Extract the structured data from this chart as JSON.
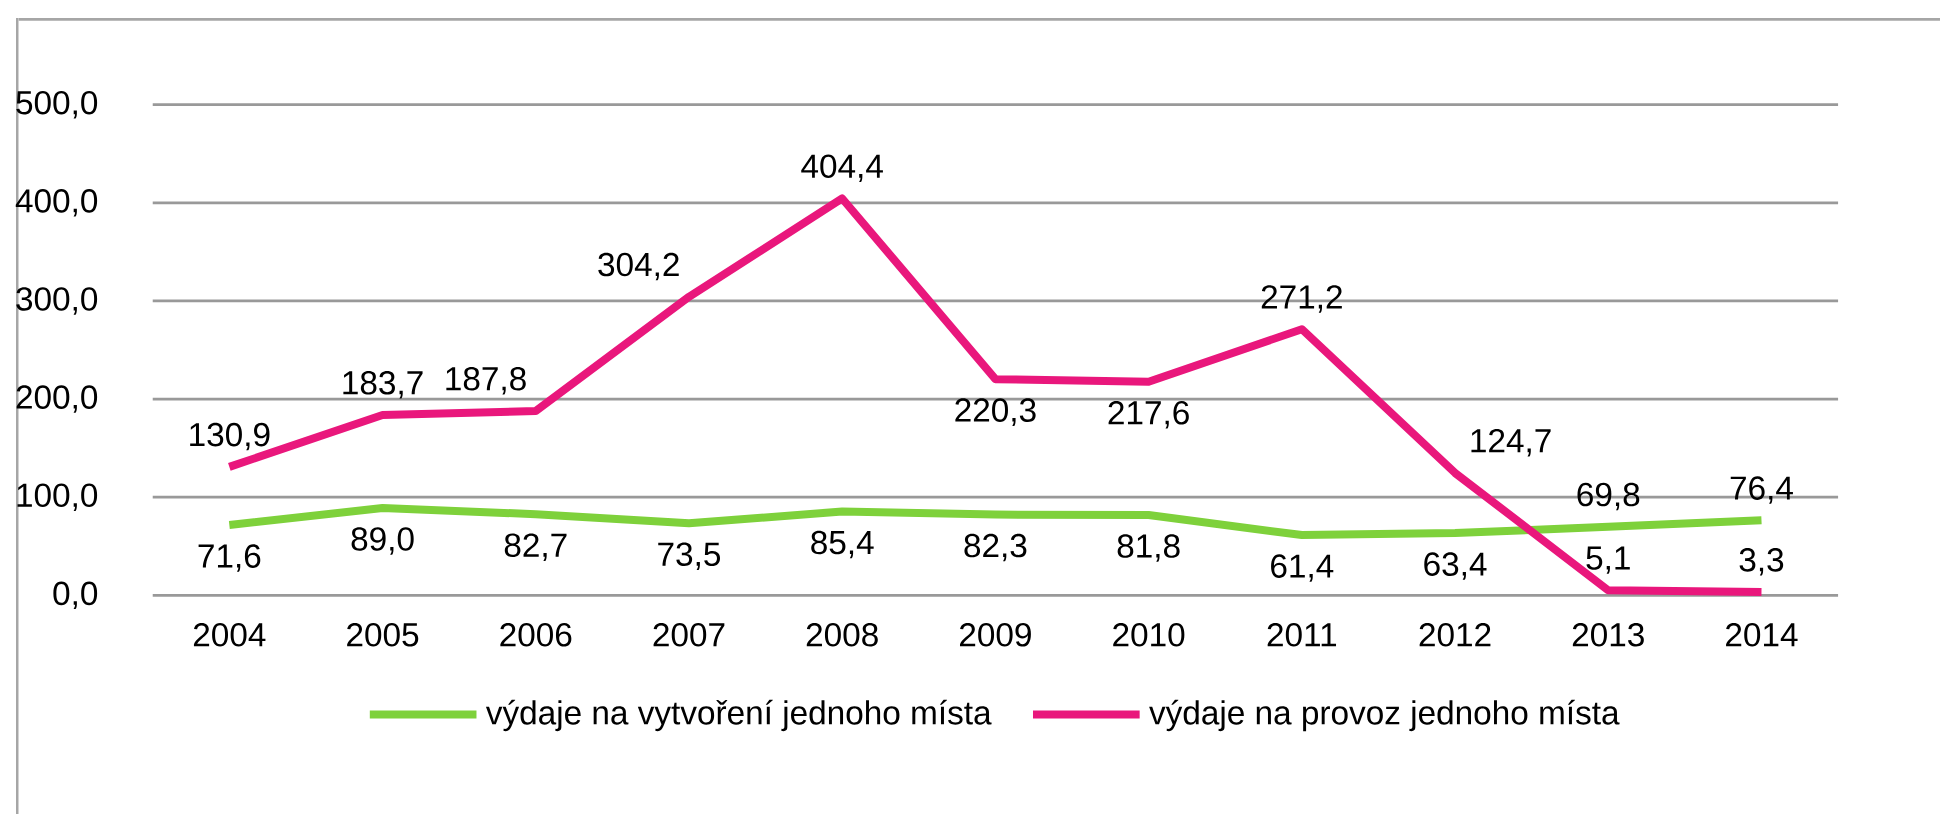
{
  "chart_data": {
    "type": "line",
    "categories": [
      "2004",
      "2005",
      "2006",
      "2007",
      "2008",
      "2009",
      "2010",
      "2011",
      "2012",
      "2013",
      "2014"
    ],
    "series": [
      {
        "name": "výdaje na vytvoření jednoho místa",
        "color": "#7ed13b",
        "values": [
          71.6,
          89.0,
          82.7,
          73.5,
          85.4,
          82.3,
          81.8,
          61.4,
          63.4,
          69.8,
          76.4
        ],
        "value_labels": [
          "71,6",
          "89,0",
          "82,7",
          "73,5",
          "85,4",
          "82,3",
          "81,8",
          "61,4",
          "63,4",
          "69,8",
          "76,4"
        ]
      },
      {
        "name": "výdaje na provoz jednoho místa",
        "color": "#e9177c",
        "values": [
          130.9,
          183.7,
          187.8,
          304.2,
          404.4,
          220.3,
          217.6,
          271.2,
          124.7,
          5.1,
          3.3
        ],
        "value_labels": [
          "130,9",
          "183,7",
          "187,8",
          "304,2",
          "404,4",
          "220,3",
          "217,6",
          "271,2",
          "124,7",
          "5,1",
          "3,3"
        ]
      }
    ],
    "ylim": [
      0,
      500
    ],
    "yticks": [
      {
        "value": 0,
        "label": "0,0"
      },
      {
        "value": 100,
        "label": "100,0"
      },
      {
        "value": 200,
        "label": "200,0"
      },
      {
        "value": 300,
        "label": "300,0"
      },
      {
        "value": 400,
        "label": "400,0"
      },
      {
        "value": 500,
        "label": "500,0"
      }
    ],
    "grid": "y",
    "legend": "bottom",
    "marker": "none",
    "line_style": "solid"
  }
}
